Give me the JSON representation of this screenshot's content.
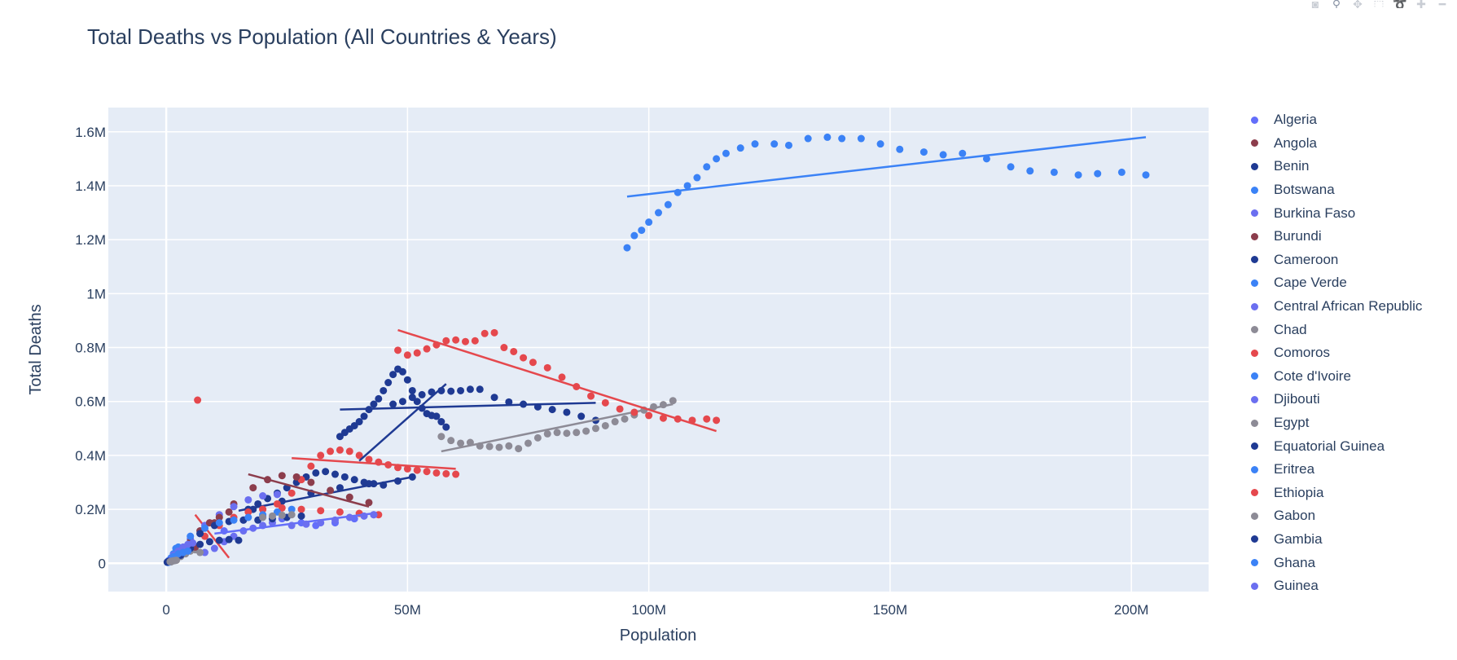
{
  "toolbar": {
    "buttons": [
      {
        "name": "camera-icon",
        "glyph": "◙"
      },
      {
        "name": "zoom-icon",
        "glyph": "⚲"
      },
      {
        "name": "pan-icon",
        "glyph": "✥"
      },
      {
        "name": "box-select-icon",
        "glyph": "⬚"
      },
      {
        "name": "lasso-select-icon",
        "glyph": "➰"
      },
      {
        "name": "zoom-in-icon",
        "glyph": "✚"
      },
      {
        "name": "zoom-out-icon",
        "glyph": "━"
      }
    ]
  },
  "chart_data": {
    "type": "scatter",
    "title": "Total Deaths vs Population (All Countries & Years)",
    "xlabel": "Population",
    "ylabel": "Total Deaths",
    "xlim": [
      -12000000,
      216000000
    ],
    "ylim": [
      -105000,
      1690000
    ],
    "x_ticks": [
      0,
      50000000,
      100000000,
      150000000,
      200000000
    ],
    "x_tick_labels": [
      "0",
      "50M",
      "100M",
      "150M",
      "200M"
    ],
    "y_ticks": [
      0,
      200000,
      400000,
      600000,
      800000,
      1000000,
      1200000,
      1400000,
      1600000
    ],
    "y_tick_labels": [
      "0",
      "0.2M",
      "0.4M",
      "0.6M",
      "0.8M",
      "1M",
      "1.2M",
      "1.4M",
      "1.6M"
    ],
    "grid": true,
    "legend_position": "right",
    "colors": {
      "plot_bg": "#e5ecf6",
      "grid": "#ffffff",
      "text": "#2a3f5f"
    },
    "series": [
      {
        "name": "Algeria",
        "color": "#636efa",
        "x": [
          12000000,
          16000000,
          20000000,
          24000000,
          28000000,
          31000000,
          35000000,
          39000000,
          43000000
        ],
        "y": [
          120000,
          160000,
          175000,
          165000,
          150000,
          140000,
          150000,
          165000,
          180000
        ],
        "trend": [
          [
            10000000,
            110000
          ],
          [
            43000000,
            185000
          ]
        ]
      },
      {
        "name": "Angola",
        "color": "#8c3d4c",
        "x": [
          6000000,
          10000000,
          14000000,
          18000000,
          21000000,
          24000000,
          27000000,
          30000000,
          34000000,
          38000000,
          42000000
        ],
        "y": [
          60000,
          150000,
          220000,
          280000,
          310000,
          325000,
          320000,
          300000,
          270000,
          245000,
          225000
        ],
        "trend": [
          [
            17000000,
            330000
          ],
          [
            42000000,
            210000
          ]
        ]
      },
      {
        "name": "Benin",
        "color": "#1f3a93",
        "x": [
          3000000,
          5000000,
          7000000,
          9000000,
          11000000,
          13000000,
          15000000
        ],
        "y": [
          30000,
          55000,
          70000,
          80000,
          85000,
          88000,
          85000
        ],
        "trend": null
      },
      {
        "name": "Botswana",
        "color": "#3b82f6",
        "x": [
          500000,
          1000000,
          1500000,
          2000000,
          2500000
        ],
        "y": [
          10000,
          20000,
          35000,
          55000,
          60000
        ],
        "trend": null
      },
      {
        "name": "Burkina Faso",
        "color": "#6b6ff0",
        "x": [
          5000000,
          8000000,
          11000000,
          14000000,
          17000000,
          20000000,
          23000000
        ],
        "y": [
          90000,
          140000,
          180000,
          210000,
          235000,
          250000,
          255000
        ],
        "trend": null
      },
      {
        "name": "Burundi",
        "color": "#8c3d4c",
        "x": [
          3000000,
          5000000,
          7000000,
          9000000,
          11000000,
          13000000
        ],
        "y": [
          40000,
          80000,
          120000,
          150000,
          170000,
          190000
        ],
        "trend": null
      },
      {
        "name": "Cameroon",
        "color": "#1f3a93",
        "x": [
          7000000,
          10000000,
          13000000,
          16000000,
          19000000,
          22000000,
          25000000,
          28000000
        ],
        "y": [
          110000,
          140000,
          155000,
          160000,
          160000,
          165000,
          170000,
          175000
        ],
        "trend": null
      },
      {
        "name": "Cape Verde",
        "color": "#3b82f6",
        "x": [
          300000,
          400000,
          500000,
          600000
        ],
        "y": [
          3000,
          3500,
          4000,
          4500
        ],
        "trend": null
      },
      {
        "name": "Central African Republic",
        "color": "#6b6ff0",
        "x": [
          1500000,
          2500000,
          3500000,
          4500000,
          5500000
        ],
        "y": [
          30000,
          45000,
          60000,
          70000,
          75000
        ],
        "trend": null
      },
      {
        "name": "Chad",
        "color": "#8d8b96",
        "x": [
          57000000,
          59000000,
          61000000,
          63000000,
          65000000,
          67000000,
          69000000,
          71000000,
          73000000,
          75000000,
          77000000,
          79000000,
          81000000,
          83000000,
          85000000,
          87000000,
          89000000,
          91000000,
          93000000,
          95000000,
          97000000,
          99000000,
          101000000,
          103000000,
          105000000
        ],
        "y": [
          470000,
          455000,
          445000,
          448000,
          435000,
          433000,
          430000,
          435000,
          425000,
          445000,
          465000,
          480000,
          485000,
          482000,
          485000,
          490000,
          500000,
          510000,
          525000,
          535000,
          550000,
          568000,
          580000,
          588000,
          603000
        ],
        "trend": [
          [
            57000000,
            415000
          ],
          [
            105000000,
            590000
          ]
        ]
      },
      {
        "name": "Comoros",
        "color": "#e5484d",
        "x": [
          6500000
        ],
        "y": [
          605000
        ],
        "trend": null
      },
      {
        "name": "Cote d'Ivoire",
        "color": "#3b82f6",
        "x": [
          5000000,
          8000000,
          11000000,
          14000000,
          17000000,
          20000000,
          23000000,
          26000000
        ],
        "y": [
          100000,
          130000,
          150000,
          160000,
          170000,
          180000,
          190000,
          200000
        ],
        "trend": null
      },
      {
        "name": "Djibouti",
        "color": "#6b6ff0",
        "x": [
          300000,
          500000,
          700000,
          900000
        ],
        "y": [
          5000,
          8000,
          10000,
          12000
        ],
        "trend": null
      },
      {
        "name": "Egypt",
        "color": "#8d8b96",
        "x": [
          20000000,
          22000000,
          24000000,
          26000000
        ],
        "y": [
          170000,
          175000,
          178000,
          180000
        ],
        "trend": null
      },
      {
        "name": "Equatorial Guinea",
        "color": "#1f3a93",
        "x": [
          200000,
          300000,
          400000,
          500000
        ],
        "y": [
          4000,
          5000,
          6000,
          7000
        ],
        "trend": null
      },
      {
        "name": "Eritrea",
        "color": "#3b82f6",
        "x": [
          1500000,
          2500000,
          3500000,
          4500000
        ],
        "y": [
          25000,
          35000,
          40000,
          45000
        ],
        "trend": null
      },
      {
        "name": "Ethiopia",
        "color": "#e5484d",
        "x": [
          48000000,
          50000000,
          52000000,
          54000000,
          56000000,
          58000000,
          60000000,
          62000000,
          64000000,
          66000000,
          68000000,
          70000000,
          72000000,
          74000000,
          76000000,
          79000000,
          82000000,
          85000000,
          88000000,
          91000000,
          94000000,
          97000000,
          100000000,
          103000000,
          106000000,
          109000000,
          112000000,
          114000000
        ],
        "y": [
          790000,
          772000,
          780000,
          795000,
          810000,
          825000,
          828000,
          822000,
          825000,
          852000,
          855000,
          800000,
          785000,
          762000,
          745000,
          725000,
          690000,
          655000,
          620000,
          595000,
          572000,
          560000,
          548000,
          538000,
          535000,
          530000,
          535000,
          530000
        ],
        "trend": [
          [
            48000000,
            865000
          ],
          [
            114000000,
            490000
          ]
        ]
      },
      {
        "name": "Gabon",
        "color": "#8d8b96",
        "x": [
          800000,
          1000000,
          1200000,
          1500000,
          1800000,
          2100000
        ],
        "y": [
          6000,
          7000,
          8000,
          9000,
          10000,
          11000
        ],
        "trend": null
      },
      {
        "name": "Gambia",
        "color": "#1f3a93",
        "x": [
          36000000,
          37000000,
          38000000,
          39000000,
          40000000,
          41000000,
          42000000,
          43000000,
          44000000,
          45000000,
          46000000,
          47000000,
          48000000,
          49000000,
          50000000,
          51000000,
          52000000,
          53000000,
          54000000,
          55000000,
          56000000,
          57000000,
          58000000
        ],
        "y": [
          470000,
          485000,
          498000,
          510000,
          525000,
          545000,
          570000,
          590000,
          610000,
          640000,
          670000,
          700000,
          720000,
          710000,
          680000,
          640000,
          600000,
          575000,
          555000,
          548000,
          545000,
          525000,
          505000
        ],
        "trend": [
          [
            40000000,
            380000
          ],
          [
            58000000,
            665000
          ]
        ]
      },
      {
        "name": "Ghana",
        "color": "#3b82f6",
        "x": [
          95500000,
          97000000,
          98500000,
          100000000,
          102000000,
          104000000,
          106000000,
          108000000,
          110000000,
          112000000,
          114000000,
          116000000,
          119000000,
          122000000,
          126000000,
          129000000,
          133000000,
          137000000,
          140000000,
          144000000,
          148000000,
          152000000,
          157000000,
          161000000,
          165000000,
          170000000,
          175000000,
          179000000,
          184000000,
          189000000,
          193000000,
          198000000,
          203000000
        ],
        "y": [
          1170000,
          1215000,
          1235000,
          1265000,
          1300000,
          1330000,
          1375000,
          1400000,
          1430000,
          1470000,
          1500000,
          1520000,
          1540000,
          1555000,
          1555000,
          1550000,
          1575000,
          1580000,
          1575000,
          1575000,
          1555000,
          1535000,
          1525000,
          1515000,
          1520000,
          1500000,
          1470000,
          1455000,
          1450000,
          1440000,
          1445000,
          1450000,
          1440000
        ],
        "trend": [
          [
            95500000,
            1360000
          ],
          [
            203000000,
            1580000
          ]
        ]
      },
      {
        "name": "Guinea",
        "color": "#6b6ff0",
        "x": [
          26000000,
          29000000,
          32000000,
          35000000,
          38000000,
          41000000,
          43000000
        ],
        "y": [
          140000,
          145000,
          150000,
          160000,
          170000,
          175000,
          180000
        ],
        "trend": null
      }
    ],
    "background_clusters": [
      {
        "color": "#1f3a93",
        "x": [
          17000000,
          19000000,
          21000000,
          23000000,
          25000000,
          27000000,
          29000000,
          31000000,
          33000000,
          35000000,
          37000000,
          39000000,
          41000000,
          43000000,
          45000000,
          47000000,
          49000000,
          51000000,
          53000000,
          55000000,
          57000000,
          59000000,
          61000000,
          63000000,
          65000000,
          68000000,
          71000000,
          74000000,
          77000000,
          80000000,
          83000000,
          86000000,
          89000000
        ],
        "y": [
          200000,
          220000,
          240000,
          260000,
          280000,
          300000,
          320000,
          335000,
          340000,
          330000,
          320000,
          310000,
          300000,
          295000,
          290000,
          590000,
          600000,
          615000,
          625000,
          635000,
          640000,
          638000,
          640000,
          645000,
          645000,
          615000,
          598000,
          590000,
          580000,
          570000,
          560000,
          545000,
          530000
        ],
        "trend": [
          [
            36000000,
            570000
          ],
          [
            89000000,
            595000
          ]
        ]
      },
      {
        "color": "#1f3a93",
        "x": [
          18000000,
          24000000,
          30000000,
          36000000,
          42000000,
          48000000,
          51000000
        ],
        "y": [
          200000,
          230000,
          260000,
          280000,
          295000,
          305000,
          320000
        ],
        "trend": [
          [
            15000000,
            195000
          ],
          [
            51000000,
            320000
          ]
        ]
      },
      {
        "color": "#e5484d",
        "x": [
          20000000,
          23000000,
          26000000,
          28000000,
          30000000,
          32000000,
          34000000,
          36000000,
          38000000,
          40000000,
          42000000,
          44000000,
          46000000,
          48000000,
          50000000,
          52000000,
          54000000,
          56000000,
          58000000,
          60000000
        ],
        "y": [
          200000,
          220000,
          260000,
          310000,
          360000,
          400000,
          415000,
          420000,
          415000,
          400000,
          385000,
          375000,
          365000,
          355000,
          350000,
          345000,
          340000,
          335000,
          332000,
          330000
        ],
        "trend": [
          [
            26000000,
            390000
          ],
          [
            60000000,
            350000
          ]
        ]
      },
      {
        "color": "#e5484d",
        "x": [
          5000000,
          8000000,
          11000000,
          14000000,
          17000000,
          20000000,
          24000000,
          28000000,
          32000000,
          36000000,
          40000000,
          44000000
        ],
        "y": [
          60000,
          100000,
          140000,
          170000,
          190000,
          200000,
          205000,
          200000,
          195000,
          190000,
          185000,
          180000
        ],
        "trend": [
          [
            6000000,
            180000
          ],
          [
            13000000,
            20000
          ]
        ]
      },
      {
        "color": "#6b6ff0",
        "x": [
          8000000,
          10000000,
          12000000,
          14000000,
          16000000,
          18000000,
          20000000,
          22000000
        ],
        "y": [
          40000,
          55000,
          80000,
          100000,
          120000,
          130000,
          140000,
          150000
        ],
        "trend": null
      },
      {
        "color": "#8d8b96",
        "x": [
          1000000,
          2000000,
          3000000,
          4000000,
          5000000,
          6000000,
          7000000
        ],
        "y": [
          5000,
          15000,
          25000,
          35000,
          45000,
          50000,
          40000
        ],
        "trend": null
      }
    ]
  }
}
